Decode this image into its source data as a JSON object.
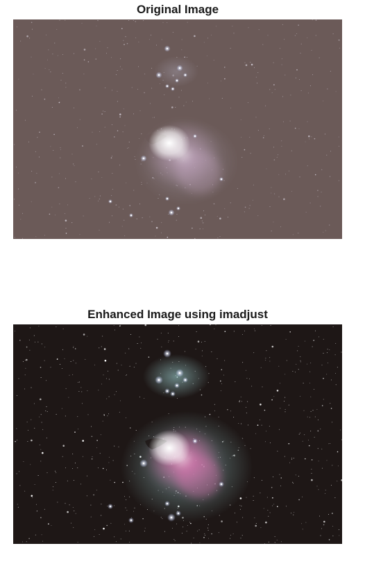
{
  "panels": [
    {
      "title": "Original Image",
      "image": {
        "subject": "orion-nebula",
        "background_color": "#6b5a58",
        "star_color": "#e8e4f0",
        "nebula_color": "#c8a8c4",
        "core_color": "#ffffff"
      }
    },
    {
      "title": "Enhanced Image using imadjust",
      "image": {
        "subject": "orion-nebula",
        "background_color": "#1e1716",
        "star_color": "#ffffff",
        "nebula_color": "#d070a8",
        "glow_color": "#a8e0e0",
        "core_color": "#ffffff"
      }
    }
  ]
}
